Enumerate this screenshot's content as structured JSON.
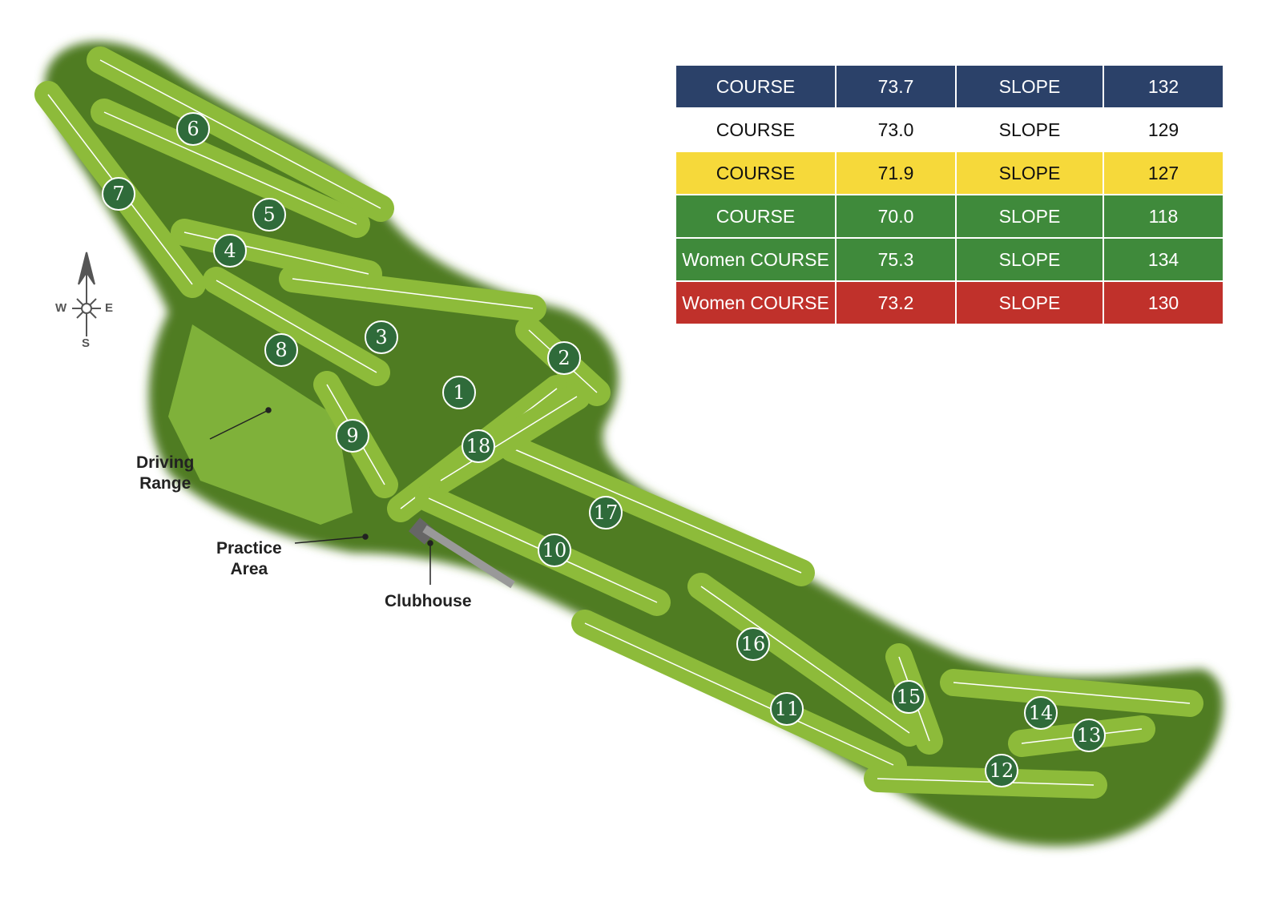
{
  "ratings_table": {
    "rows": [
      {
        "course_label": "COURSE",
        "course_rating": "73.7",
        "slope_label": "SLOPE",
        "slope_rating": "132",
        "bg": "#2b4169",
        "fg": "#ffffff"
      },
      {
        "course_label": "COURSE",
        "course_rating": "73.0",
        "slope_label": "SLOPE",
        "slope_rating": "129",
        "bg": "#ffffff",
        "fg": "#111111"
      },
      {
        "course_label": "COURSE",
        "course_rating": "71.9",
        "slope_label": "SLOPE",
        "slope_rating": "127",
        "bg": "#f6d93a",
        "fg": "#111111"
      },
      {
        "course_label": "COURSE",
        "course_rating": "70.0",
        "slope_label": "SLOPE",
        "slope_rating": "118",
        "bg": "#3f8a3b",
        "fg": "#ffffff"
      },
      {
        "course_label": "Women COURSE",
        "course_rating": "75.3",
        "slope_label": "SLOPE",
        "slope_rating": "134",
        "bg": "#3f8a3b",
        "fg": "#ffffff"
      },
      {
        "course_label": "Women COURSE",
        "course_rating": "73.2",
        "slope_label": "SLOPE",
        "slope_rating": "130",
        "bg": "#c0312b",
        "fg": "#ffffff"
      }
    ]
  },
  "labels": {
    "driving_range": "Driving\nRange",
    "practice_area": "Practice\nArea",
    "clubhouse": "Clubhouse"
  },
  "compass": {
    "west": "W",
    "east": "E",
    "south": "S"
  },
  "holes": [
    "1",
    "2",
    "3",
    "4",
    "5",
    "6",
    "7",
    "8",
    "9",
    "10",
    "11",
    "12",
    "13",
    "14",
    "15",
    "16",
    "17",
    "18"
  ],
  "colors": {
    "rough": "#4d7a22",
    "fairway": "#8dbb3a",
    "marker": "#2f6b3a"
  }
}
